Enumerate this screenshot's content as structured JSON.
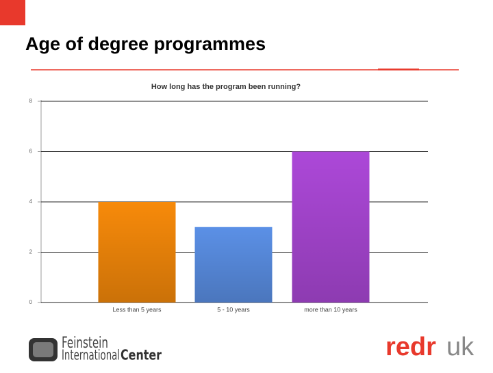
{
  "slide_title": "Age of degree programmes",
  "logos": {
    "feinstein": [
      "Feinstein",
      "International",
      "Center"
    ],
    "redr": [
      "redr",
      "uk"
    ]
  },
  "chart_data": {
    "type": "bar",
    "title": "How long has the program been running?",
    "categories": [
      "Less than 5 years",
      "5 - 10 years",
      "more than 10 years"
    ],
    "values": [
      4,
      3,
      6
    ],
    "colors": [
      "#f78a0a",
      "#5b90e6",
      "#ac48d8"
    ],
    "ylim": [
      0,
      8
    ],
    "yticks": [
      0,
      2,
      4,
      6,
      8
    ],
    "grid": true
  }
}
